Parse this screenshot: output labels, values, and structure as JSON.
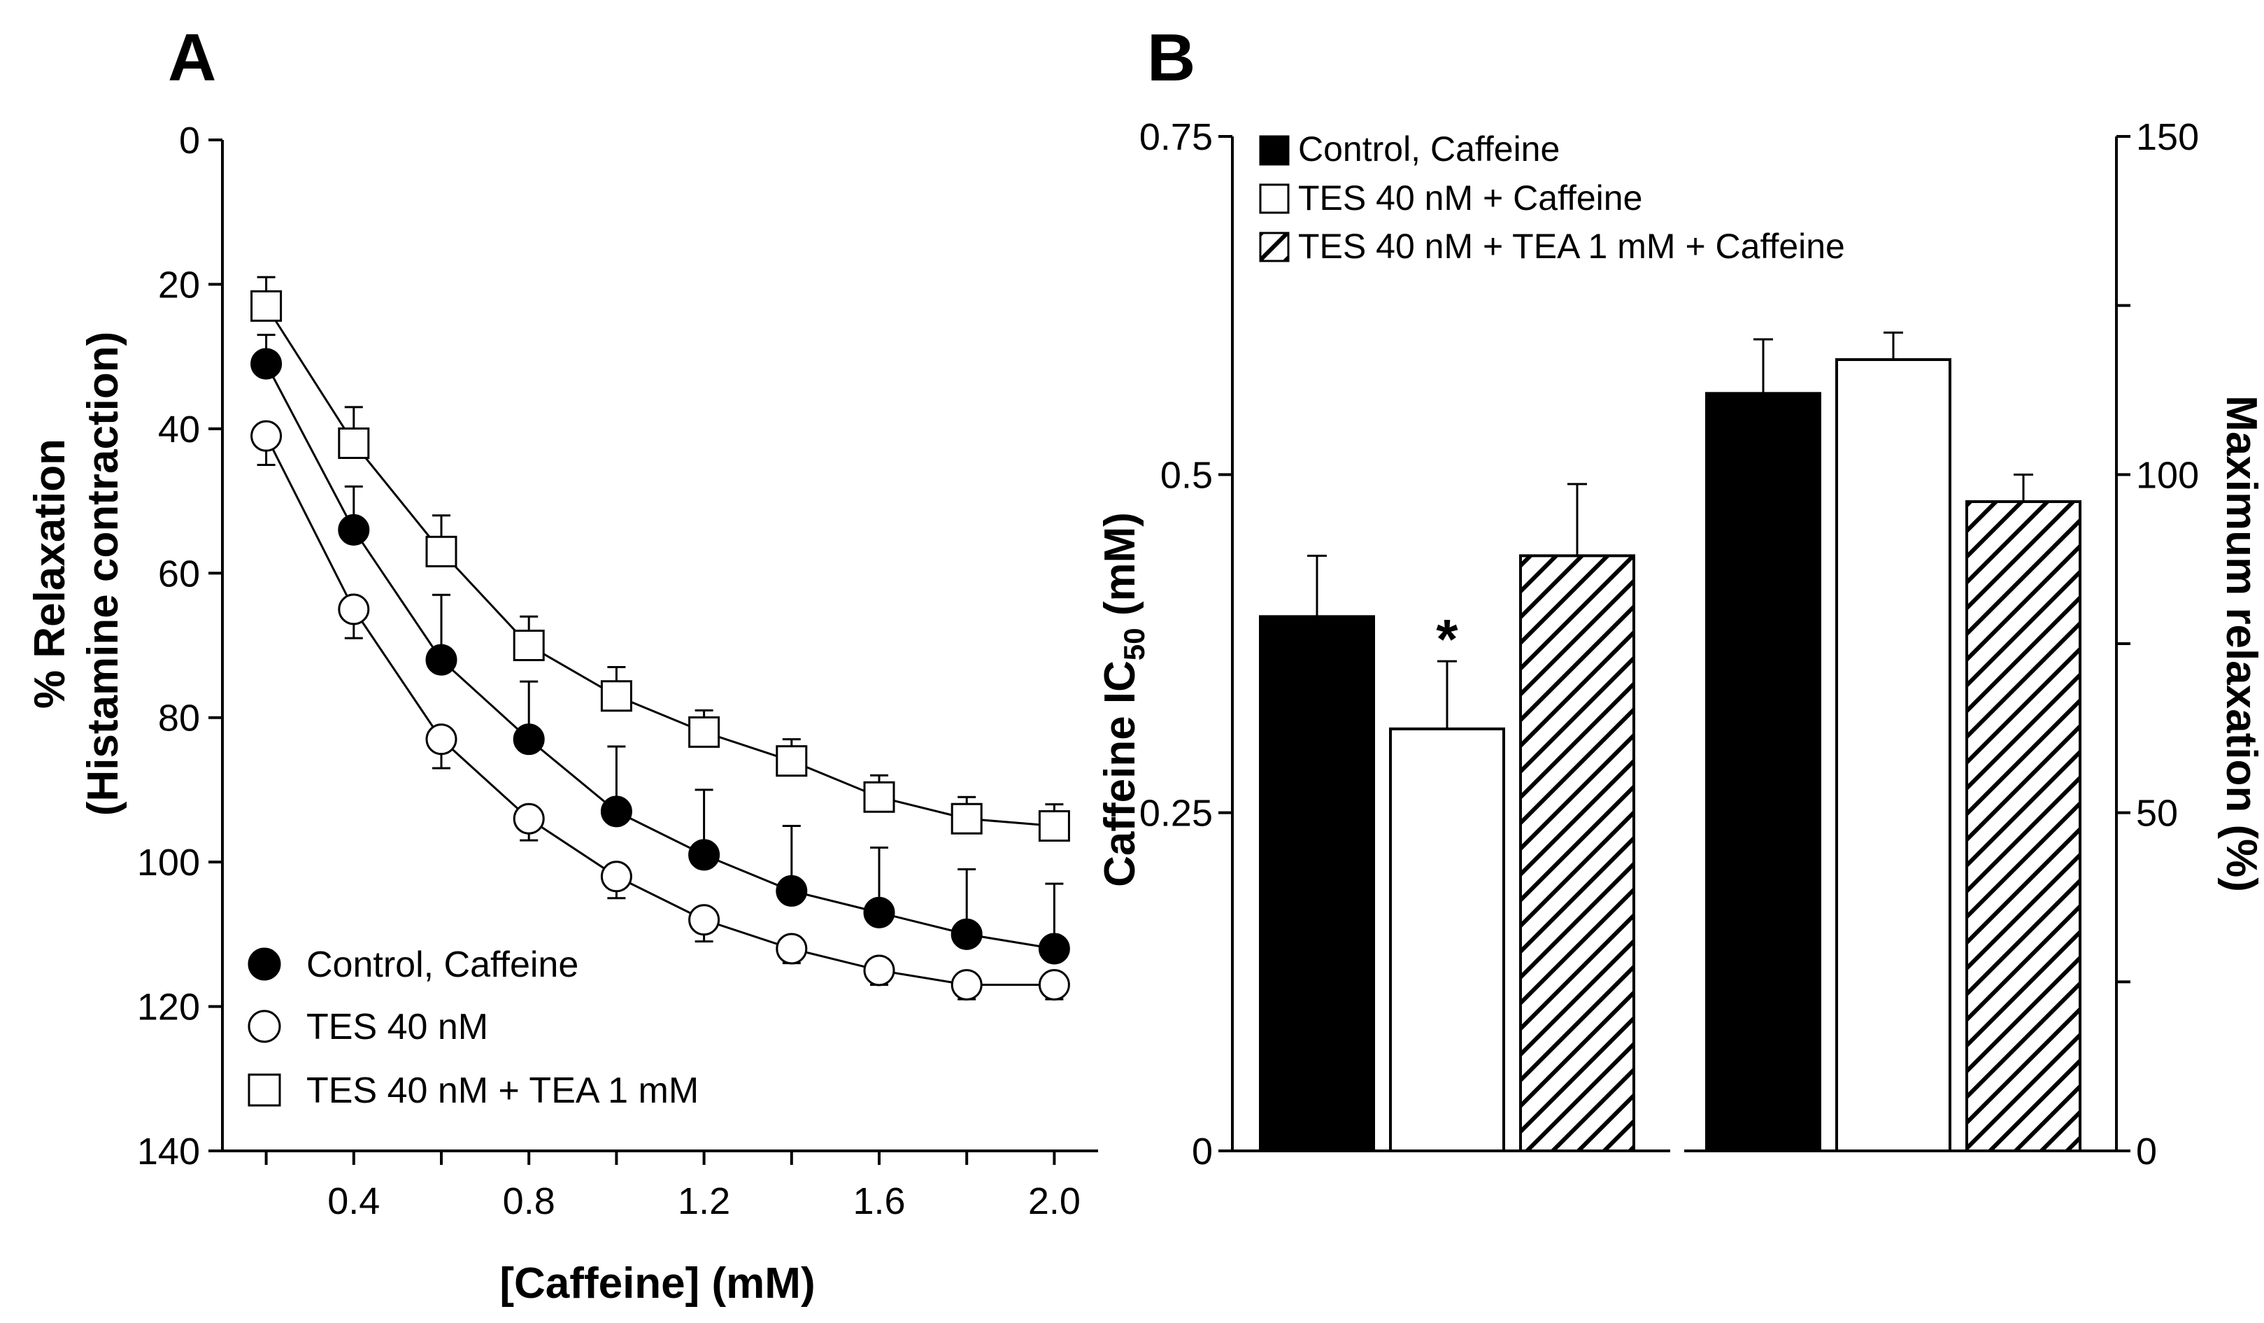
{
  "chart_data": [
    {
      "panel": "A",
      "type": "line",
      "panel_label": "A",
      "xlabel": "[Caffeine] (mM)",
      "ylabel_line1": "% Relaxation",
      "ylabel_line2": "(Histamine contraction)",
      "xlim": [
        0.1,
        2.1
      ],
      "ylim": [
        0,
        140
      ],
      "y_inverted": true,
      "x": [
        0.2,
        0.4,
        0.6,
        0.8,
        1.0,
        1.2,
        1.4,
        1.6,
        1.8,
        2.0
      ],
      "x_ticks": [
        0.2,
        0.4,
        0.6,
        0.8,
        1.0,
        1.2,
        1.4,
        1.6,
        1.8,
        2.0
      ],
      "x_tick_labels": [
        "0.4",
        "0.8",
        "1.2",
        "1.6",
        "2.0"
      ],
      "x_tick_label_values": [
        0.4,
        0.8,
        1.2,
        1.6,
        2.0
      ],
      "y_ticks": [
        0,
        20,
        40,
        60,
        80,
        100,
        120,
        140
      ],
      "y_tick_labels": [
        "0",
        "20",
        "40",
        "60",
        "80",
        "100",
        "120",
        "140"
      ],
      "series": [
        {
          "name": "Control, Caffeine",
          "marker": "filled-circle",
          "values": [
            31,
            54,
            72,
            83,
            93,
            99,
            104,
            107,
            110,
            112
          ],
          "errors": [
            4,
            6,
            9,
            8,
            9,
            9,
            9,
            9,
            9,
            9
          ],
          "error_dir": "up"
        },
        {
          "name": "TES 40 nM",
          "marker": "open-circle",
          "values": [
            41,
            65,
            83,
            94,
            102,
            108,
            112,
            115,
            117,
            117
          ],
          "errors": [
            4,
            4,
            4,
            3,
            3,
            3,
            2,
            2,
            2,
            2
          ],
          "error_dir": "down"
        },
        {
          "name": "TES 40 nM + TEA 1 mM",
          "marker": "open-square",
          "values": [
            23,
            42,
            57,
            70,
            77,
            82,
            86,
            91,
            94,
            95
          ],
          "errors": [
            4,
            5,
            5,
            4,
            4,
            3,
            3,
            3,
            3,
            3
          ],
          "error_dir": "up"
        }
      ]
    },
    {
      "panel": "B",
      "type": "bar",
      "panel_label": "B",
      "ylabel_left": "Caffeine IC50 (mM)",
      "ylabel_left_main": "Caffeine IC",
      "ylabel_left_sub": "50",
      "ylabel_left_unit": " (mM)",
      "ylabel_right": "Maximum relaxation (%)",
      "ylim_left": [
        0,
        0.75
      ],
      "ylim_right": [
        0,
        150
      ],
      "left_ticks": [
        0,
        0.25,
        0.5,
        0.75
      ],
      "left_tick_labels": [
        "0",
        "0.25",
        "0.5",
        "0.75"
      ],
      "right_ticks": [
        0,
        25,
        50,
        75,
        100,
        125,
        150
      ],
      "right_tick_labels": [
        "0",
        "50",
        "100",
        "150"
      ],
      "right_tick_label_values": [
        0,
        50,
        100,
        150
      ],
      "groups": [
        {
          "axis": "left",
          "bars": [
            {
              "name": "Control, Caffeine",
              "fill": "solid",
              "value": 0.395,
              "error": 0.045
            },
            {
              "name": "TES 40 nM + Caffeine",
              "fill": "open",
              "value": 0.312,
              "error": 0.05,
              "annotation": "*"
            },
            {
              "name": "TES 40 nM + TEA 1 mM + Caffeine",
              "fill": "hatched",
              "value": 0.44,
              "error": 0.053
            }
          ]
        },
        {
          "axis": "right",
          "bars": [
            {
              "name": "Control, Caffeine",
              "fill": "solid",
              "value": 112,
              "error": 8
            },
            {
              "name": "TES 40 nM + Caffeine",
              "fill": "open",
              "value": 117,
              "error": 4
            },
            {
              "name": "TES 40 nM + TEA 1 mM + Caffeine",
              "fill": "hatched",
              "value": 96,
              "error": 4
            }
          ]
        }
      ],
      "legend": [
        "Control, Caffeine",
        "TES 40 nM + Caffeine",
        "TES 40 nM + TEA 1 mM + Caffeine"
      ]
    }
  ]
}
